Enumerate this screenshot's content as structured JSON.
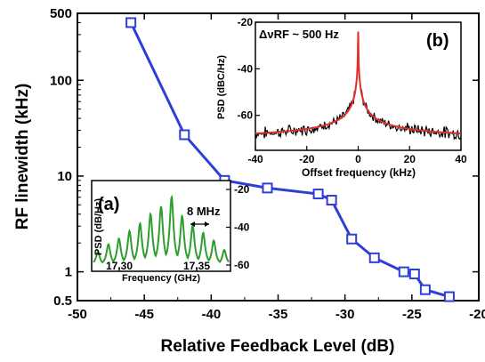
{
  "chart_data": [
    {
      "type": "line",
      "xlabel": "Relative Feedback Level (dB)",
      "ylabel": "RF linewidth (kHz)",
      "xlim": [
        -50,
        -20
      ],
      "ylim": [
        0.5,
        500
      ],
      "yscale": "log",
      "x_ticks": [
        "-50",
        "-45",
        "-40",
        "-35",
        "-30",
        "-25",
        "-20"
      ],
      "y_ticks": [
        "0.5",
        "1",
        "10",
        "100",
        "500"
      ],
      "series": [
        {
          "color": "#2f3fd6",
          "marker": "open-square",
          "x": [
            -46.0,
            -42.0,
            -39.0,
            -35.8,
            -32.0,
            -31.0,
            -29.5,
            -27.8,
            -25.6,
            -24.8,
            -24.0,
            -22.2
          ],
          "y": [
            400,
            27,
            9.0,
            7.5,
            6.5,
            5.6,
            2.2,
            1.4,
            1.0,
            0.95,
            0.65,
            0.55
          ]
        }
      ]
    },
    {
      "type": "line",
      "panel_label": "(a)",
      "xlabel": "Frequency (GHz)",
      "ylabel": "PSD (dB/Hz)",
      "x_ticks": [
        "17.30",
        "17.35"
      ],
      "y_ticks": [
        "-20",
        "-40",
        "-60"
      ],
      "annotation": "8 MHz",
      "series": [
        {
          "color": "#2e9e2e",
          "comb_peak_levels_db": [
            -53,
            -49,
            -46,
            -42,
            -38,
            -33,
            -29,
            -24,
            -34,
            -39,
            -43,
            -47,
            -52
          ],
          "floor_db": -60
        }
      ]
    },
    {
      "type": "line",
      "panel_label": "(b)",
      "annotation": "ΔνRF ~ 500 Hz",
      "xlabel": "Offset frequency (kHz)",
      "ylabel": "PSD (dBC/Hz)",
      "xlim": [
        -40,
        40
      ],
      "ylim": [
        -75,
        -20
      ],
      "x_ticks": [
        "-40",
        "-20",
        "0",
        "20",
        "40"
      ],
      "y_ticks": [
        "-20",
        "-40",
        "-60"
      ],
      "series": [
        {
          "color": "#000000",
          "kind": "measured"
        },
        {
          "color": "#e0302a",
          "kind": "fit",
          "peak_db": -24
        }
      ]
    }
  ]
}
